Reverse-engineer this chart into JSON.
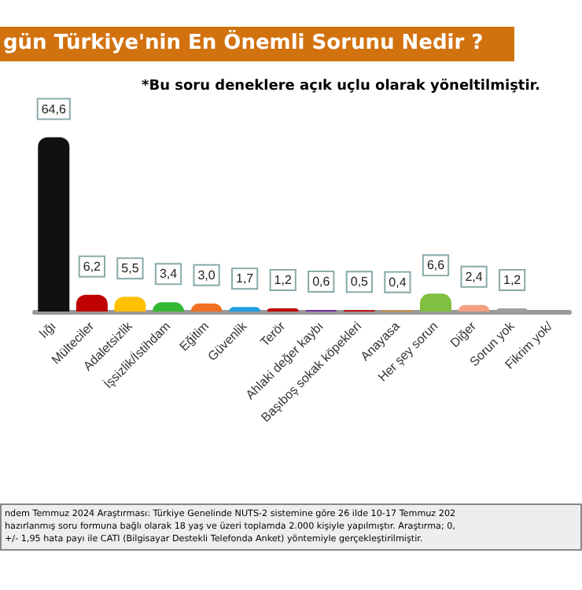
{
  "chart_data": {
    "type": "bar",
    "title": "gün Türkiye'nin En Önemli Sorunu Nedir ?",
    "categories": [
      "lığı",
      "Mülteciler",
      "Adaletsizlik",
      "İşsizlik/İstihdam",
      "Eğitim",
      "Güvenlik",
      "Terör",
      "Ahlaki değer kaybı",
      "Başıboş sokak köpekleri",
      "Anayasa",
      "Her şey sorun",
      "Diğer",
      "Sorun yok",
      "Fikrim yok/"
    ],
    "values": [
      64.6,
      6.2,
      5.5,
      3.4,
      3.0,
      1.7,
      1.2,
      0.6,
      0.5,
      0.4,
      6.6,
      2.4,
      1.2,
      null
    ],
    "colors": [
      "#111111",
      "#c00000",
      "#ffc000",
      "#33b833",
      "#f07020",
      "#20a0e0",
      "#c00000",
      "#7030a0",
      "#c00000",
      "#e09020",
      "#80c040",
      "#f4a080",
      "#a0a0a0",
      "#a0a0a0"
    ],
    "value_labels": [
      "64,6",
      "6,2",
      "5,5",
      "3,4",
      "3,0",
      "1,7",
      "1,2",
      "0,6",
      "0,5",
      "0,4",
      "6,6",
      "2,4",
      "1,2",
      null
    ],
    "annotations": [
      "*Bu soru deneklere açık uçlu olarak yöneltilmiştir.",
      "ndem Temmuz 2024 Araştırması: Türkiye Genelinde NUTS-2 sistemine göre 26 ilde 10-17 Temmuz 202",
      " hazırlanmış soru formuna bağlı olarak 18 yaş ve üzeri toplamda 2.000 kişiyle yapılmıştır. Araştırma; 0,",
      " +/- 1,95 hata payı ile CATI (Bilgisayar Destekli Telefonda Anket) yöntemiyle gerçekleştirilmiştir."
    ]
  }
}
